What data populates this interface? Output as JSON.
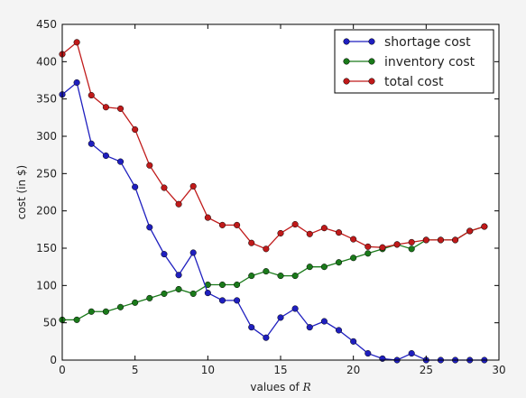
{
  "chart_data": {
    "type": "line",
    "title": "",
    "xlabel": "values of R",
    "xlabel_text": "values of ",
    "xlabel_var": "R",
    "ylabel": "cost (in $)",
    "xlim": [
      0,
      30
    ],
    "ylim": [
      0,
      450
    ],
    "xticks": [
      0,
      5,
      10,
      15,
      20,
      25,
      30
    ],
    "yticks": [
      0,
      50,
      100,
      150,
      200,
      250,
      300,
      350,
      400,
      450
    ],
    "grid": false,
    "legend_position": "top-right",
    "x": [
      0,
      1,
      2,
      3,
      4,
      5,
      6,
      7,
      8,
      9,
      10,
      11,
      12,
      13,
      14,
      15,
      16,
      17,
      18,
      19,
      20,
      21,
      22,
      23,
      24,
      25,
      26,
      27,
      28,
      29
    ],
    "series": [
      {
        "name": "shortage cost",
        "color": "#1f1fbf",
        "values": [
          356,
          372,
          290,
          274,
          266,
          232,
          178,
          142,
          114,
          144,
          90,
          80,
          80,
          44,
          30,
          57,
          69,
          44,
          52,
          40,
          25,
          9,
          2,
          0,
          9,
          0,
          0,
          0,
          0,
          0
        ]
      },
      {
        "name": "inventory cost",
        "color": "#1a7a1a",
        "values": [
          54,
          54,
          65,
          65,
          71,
          77,
          83,
          89,
          95,
          89,
          101,
          101,
          101,
          113,
          119,
          113,
          113,
          125,
          125,
          131,
          137,
          143,
          149,
          155,
          149,
          161,
          161,
          161,
          173,
          179
        ]
      },
      {
        "name": "total cost",
        "color": "#c01a1a",
        "values": [
          410,
          426,
          355,
          339,
          337,
          309,
          261,
          231,
          209,
          233,
          191,
          181,
          181,
          157,
          149,
          170,
          182,
          169,
          177,
          171,
          162,
          152,
          151,
          155,
          158,
          161,
          161,
          161,
          173,
          179
        ]
      }
    ]
  }
}
